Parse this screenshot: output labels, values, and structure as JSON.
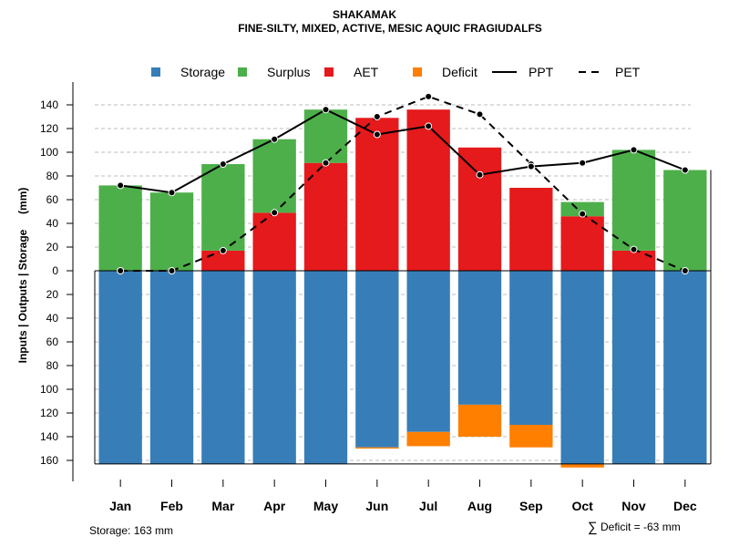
{
  "chart_data": {
    "type": "bar",
    "title": "SHAKAMAK",
    "subtitle": "FINE-SILTY, MIXED, ACTIVE, MESIC AQUIC FRAGIUDALFS",
    "ylabel": "Inputs | Outputs | Storage     (mm)",
    "ylim": [
      -163,
      155
    ],
    "y_ticks": [
      140,
      120,
      100,
      80,
      60,
      40,
      20,
      0,
      -20,
      -40,
      -60,
      -80,
      -100,
      -120,
      -140,
      -160
    ],
    "y_tick_labels": [
      "140",
      "120",
      "100",
      "80",
      "60",
      "40",
      "20",
      "0",
      "20",
      "40",
      "60",
      "80",
      "100",
      "120",
      "140",
      "160"
    ],
    "categories": [
      "Jan",
      "Feb",
      "Mar",
      "Apr",
      "May",
      "Jun",
      "Jul",
      "Aug",
      "Sep",
      "Oct",
      "Nov",
      "Dec"
    ],
    "legend": [
      {
        "name": "Storage",
        "kind": "box",
        "color": "#377EB8"
      },
      {
        "name": "Surplus",
        "kind": "box",
        "color": "#4DAF4A"
      },
      {
        "name": "AET",
        "kind": "box",
        "color": "#E41A1C"
      },
      {
        "name": "Deficit",
        "kind": "box",
        "color": "#FF7F00"
      },
      {
        "name": "PPT",
        "kind": "solid",
        "color": "#000000"
      },
      {
        "name": "PET",
        "kind": "dashed",
        "color": "#000000"
      }
    ],
    "series": [
      {
        "name": "AET",
        "color": "#E41A1C",
        "values": [
          0,
          0,
          17,
          49,
          91,
          129,
          136,
          104,
          70,
          46,
          17,
          0
        ]
      },
      {
        "name": "Surplus",
        "color": "#4DAF4A",
        "values": [
          72,
          66,
          73,
          62,
          45,
          0,
          0,
          0,
          0,
          12,
          85,
          85
        ]
      },
      {
        "name": "Storage",
        "color": "#377EB8",
        "values": [
          163,
          163,
          163,
          163,
          163,
          149,
          136,
          113,
          130,
          163,
          163,
          163
        ]
      },
      {
        "name": "Deficit",
        "color": "#FF7F00",
        "values": [
          0,
          0,
          0,
          0,
          0,
          1,
          12,
          27,
          19,
          3,
          0,
          0
        ]
      },
      {
        "name": "PPT",
        "color": "#000000",
        "values": [
          72,
          66,
          90,
          111,
          136,
          115,
          122,
          81,
          88,
          91,
          102,
          85
        ]
      },
      {
        "name": "PET",
        "color": "#000000",
        "values": [
          0,
          0,
          17,
          49,
          91,
          130,
          147,
          132,
          90,
          48,
          18,
          0
        ]
      }
    ]
  },
  "footer": {
    "storage_label": "Storage: 163 mm",
    "deficit_symbol": "∑",
    "deficit_label": "Deficit = -63 mm"
  }
}
